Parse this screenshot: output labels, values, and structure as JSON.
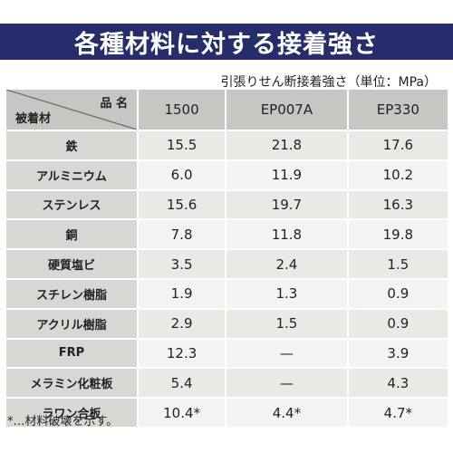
{
  "title": "各種材料に対する接着強さ",
  "unit_note": "引張りせん断接着強さ（単位：MPa）",
  "table": {
    "corner_product": "品 名",
    "corner_material": "被着材",
    "products": [
      "1500",
      "EP007A",
      "EP330"
    ],
    "rows": [
      {
        "material": "鉄",
        "values": [
          "15.5",
          "21.8",
          "17.6"
        ]
      },
      {
        "material": "アルミニウム",
        "values": [
          "6.0",
          "11.9",
          "10.2"
        ]
      },
      {
        "material": "ステンレス",
        "values": [
          "15.6",
          "19.7",
          "16.3"
        ]
      },
      {
        "material": "銅",
        "values": [
          "7.8",
          "11.8",
          "19.8"
        ]
      },
      {
        "material": "硬質塩ビ",
        "values": [
          "3.5",
          "2.4",
          "1.5"
        ]
      },
      {
        "material": "スチレン樹脂",
        "values": [
          "1.9",
          "1.3",
          "0.9"
        ]
      },
      {
        "material": "アクリル樹脂",
        "values": [
          "2.9",
          "1.5",
          "0.9"
        ]
      },
      {
        "material": "FRP",
        "values": [
          "12.3",
          "—",
          "3.9"
        ]
      },
      {
        "material": "メラミン化粧板",
        "values": [
          "5.4",
          "—",
          "4.3"
        ]
      },
      {
        "material": "ラワン合板",
        "values": [
          "10.4*",
          "4.4*",
          "4.7*"
        ]
      }
    ]
  },
  "footnote": "*…材料破壊を示す。",
  "colors": {
    "banner": "#262d6a",
    "header": "#c8c6c3",
    "row_header": "#d9d7d4"
  }
}
